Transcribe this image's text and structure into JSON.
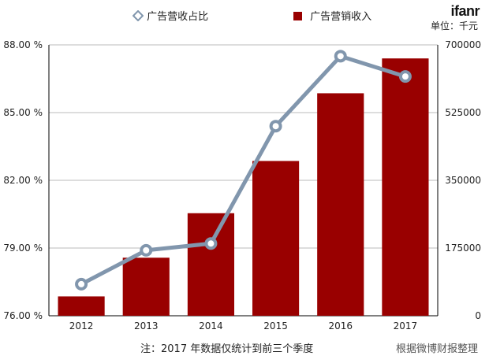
{
  "legend": {
    "line_label": "广告营收占比",
    "bar_label": "广告营销收入"
  },
  "brand": {
    "logo_text": "ifanr"
  },
  "unit_label": "单位：千元",
  "footer": {
    "note": "注：2017 年数据仅统计到前三个季度",
    "source": "根据微博财报整理"
  },
  "chart_data": {
    "type": "bar+line",
    "categories": [
      "2012",
      "2013",
      "2014",
      "2015",
      "2016",
      "2017"
    ],
    "series": [
      {
        "name": "广告营销收入",
        "type": "bar",
        "axis": "right",
        "values": [
          50000,
          150000,
          265000,
          400000,
          575000,
          665000
        ]
      },
      {
        "name": "广告营收占比",
        "type": "line",
        "axis": "left",
        "values": [
          77.4,
          78.9,
          79.2,
          84.4,
          87.5,
          86.6
        ]
      }
    ],
    "left_axis": {
      "ylim": [
        76.0,
        88.0
      ],
      "ticks": [
        "76.00 %",
        "79.00 %",
        "82.00 %",
        "85.00 %",
        "88.00 %"
      ]
    },
    "right_axis": {
      "ylim": [
        0,
        700000
      ],
      "ticks": [
        "0",
        "175000",
        "350000",
        "525000",
        "700000"
      ]
    },
    "grid": true,
    "legend_position": "top",
    "colors": {
      "bar": "#990000",
      "line": "#8196ad",
      "marker_fill": "#ffffff",
      "grid": "#bbbbbb"
    }
  }
}
